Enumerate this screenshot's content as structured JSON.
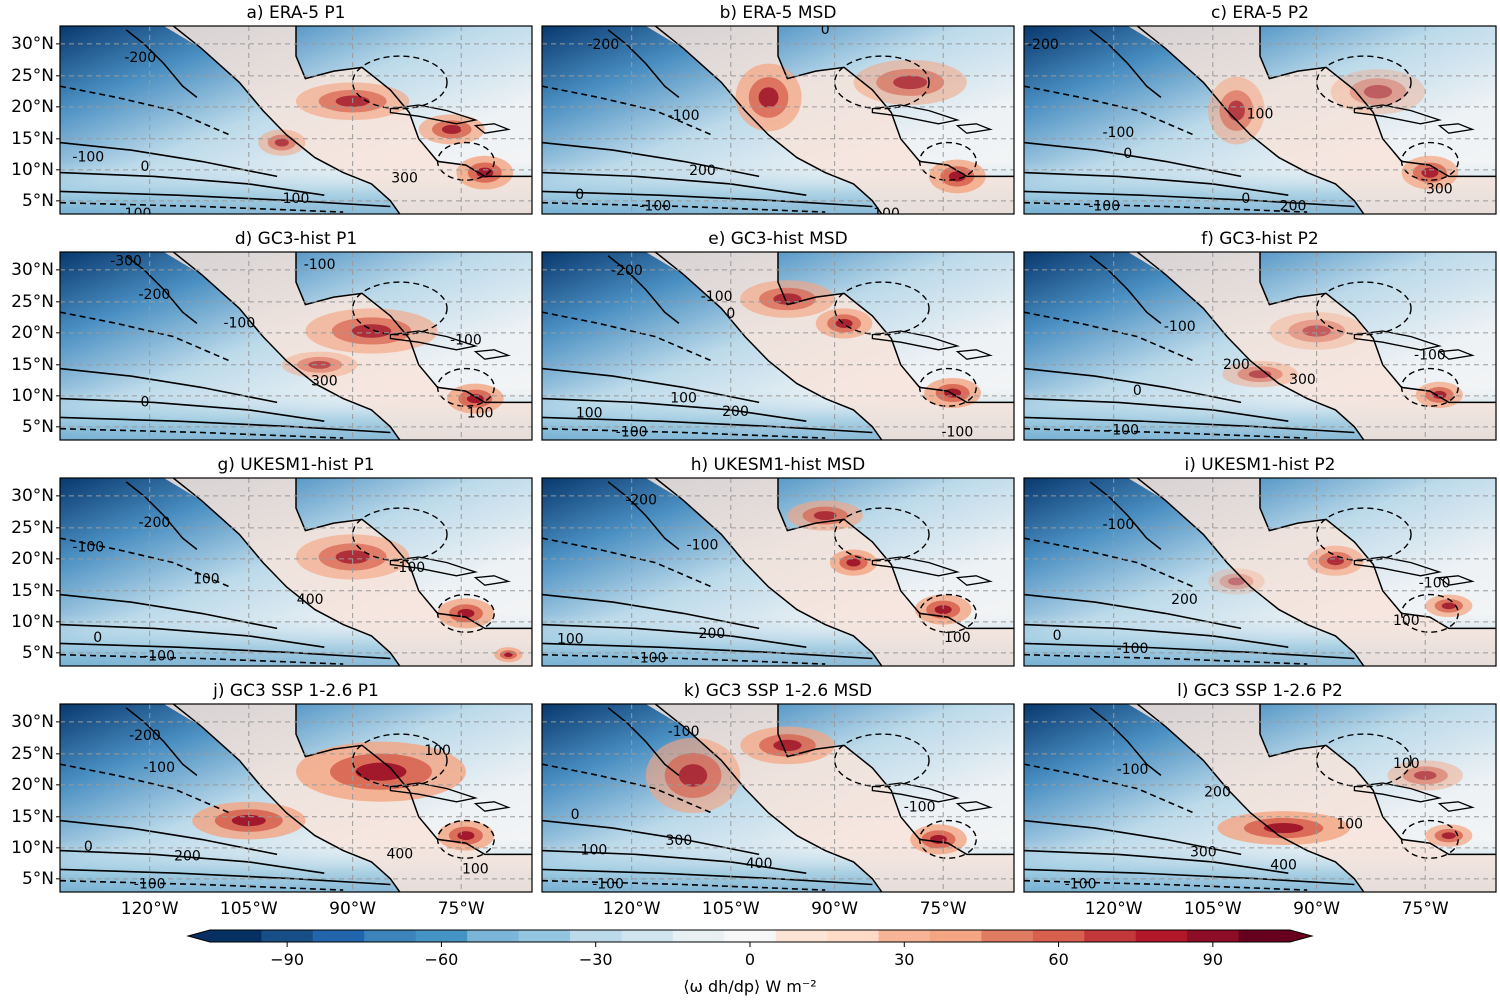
{
  "panels": [
    {
      "title": "a)  ERA-5 P1"
    },
    {
      "title": "b)  ERA-5 MSD"
    },
    {
      "title": "c)  ERA-5 P2"
    },
    {
      "title": "d)  GC3-hist P1"
    },
    {
      "title": "e)  GC3-hist MSD"
    },
    {
      "title": "f)  GC3-hist P2"
    },
    {
      "title": "g)  UKESM1-hist P1"
    },
    {
      "title": "h)  UKESM1-hist MSD"
    },
    {
      "title": "i)  UKESM1-hist P2"
    },
    {
      "title": "j)  GC3 SSP 1-2.6 P1"
    },
    {
      "title": "k)  GC3 SSP 1-2.6 MSD"
    },
    {
      "title": "l)  GC3 SSP 1-2.6 P2"
    }
  ],
  "lat_labels": [
    "30°N",
    "25°N",
    "20°N",
    "15°N",
    "10°N",
    "5°N"
  ],
  "lon_labels": [
    "120°W",
    "105°W",
    "90°W",
    "75°W"
  ],
  "contour_labels": [
    [
      "-200",
      "-100",
      "0",
      "100",
      "-100",
      "300"
    ],
    [
      "-200",
      "-100",
      "0",
      "200",
      "0",
      "-100",
      "100"
    ],
    [
      "-200",
      "-100",
      "0",
      "100",
      "-100",
      "0",
      "200",
      "300"
    ],
    [
      "-300",
      "-200",
      "-100",
      "-100",
      "0",
      "300",
      "-100",
      "100"
    ],
    [
      "-200",
      "-100",
      "0",
      "100",
      "-100",
      "100",
      "200",
      "-100"
    ],
    [
      "-100",
      "-100",
      "0",
      "200",
      "-100",
      "300"
    ],
    [
      "-200",
      "-100",
      "100",
      "0",
      "400",
      "-100",
      "-100"
    ],
    [
      "-200",
      "-100",
      "100",
      "200",
      "-100",
      "100"
    ],
    [
      "-100",
      "0",
      "-100",
      "200",
      "100",
      "-100"
    ],
    [
      "-200",
      "-100",
      "100",
      "0",
      "200",
      "-100",
      "400",
      "100"
    ],
    [
      "-100",
      "0",
      "100",
      "300",
      "400",
      "-100",
      "-100"
    ],
    [
      "-100",
      "100",
      "200",
      "300",
      "400",
      "100",
      "-100"
    ]
  ],
  "colorbar": {
    "ticks": [
      "−90",
      "−60",
      "−30",
      "0",
      "30",
      "60",
      "90"
    ],
    "label": "⟨ω dh/dp⟩ W m⁻²",
    "colors": [
      "#053061",
      "#174e86",
      "#2166ac",
      "#3a84bb",
      "#4393c3",
      "#7bb5d7",
      "#92c5de",
      "#bcdaea",
      "#d1e5f0",
      "#e9f0f4",
      "#f7f7f7",
      "#fbe4d6",
      "#fddbc7",
      "#f6b596",
      "#f4a582",
      "#e07c62",
      "#d6604d",
      "#c2373b",
      "#b2182b",
      "#8c0d25",
      "#67001f"
    ]
  }
}
